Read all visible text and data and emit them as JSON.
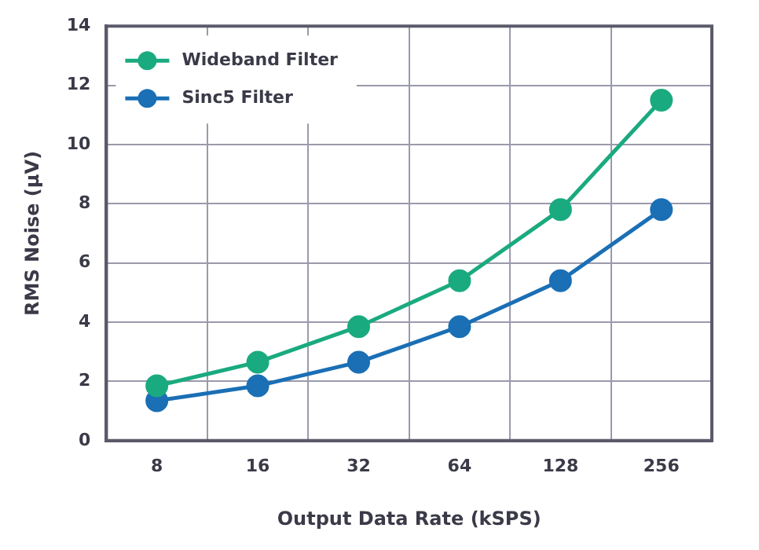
{
  "chart_data": {
    "type": "line",
    "xlabel": "Output Data Rate (kSPS)",
    "ylabel": "RMS Noise (µV)",
    "categories": [
      "8",
      "16",
      "32",
      "64",
      "128",
      "256"
    ],
    "series": [
      {
        "name": "Wideband Filter",
        "color": "#1aaa7f",
        "values": [
          1.85,
          2.65,
          3.85,
          5.4,
          7.8,
          11.5
        ]
      },
      {
        "name": "Sinc5 Filter",
        "color": "#1a6fb5",
        "values": [
          1.35,
          1.85,
          2.65,
          3.85,
          5.4,
          7.8
        ]
      }
    ],
    "ylim": [
      0,
      14
    ],
    "yticks": [
      0,
      2,
      4,
      6,
      8,
      10,
      12,
      14
    ],
    "grid": true,
    "legend": "top left",
    "marker": "circle",
    "line_style": "solid"
  }
}
